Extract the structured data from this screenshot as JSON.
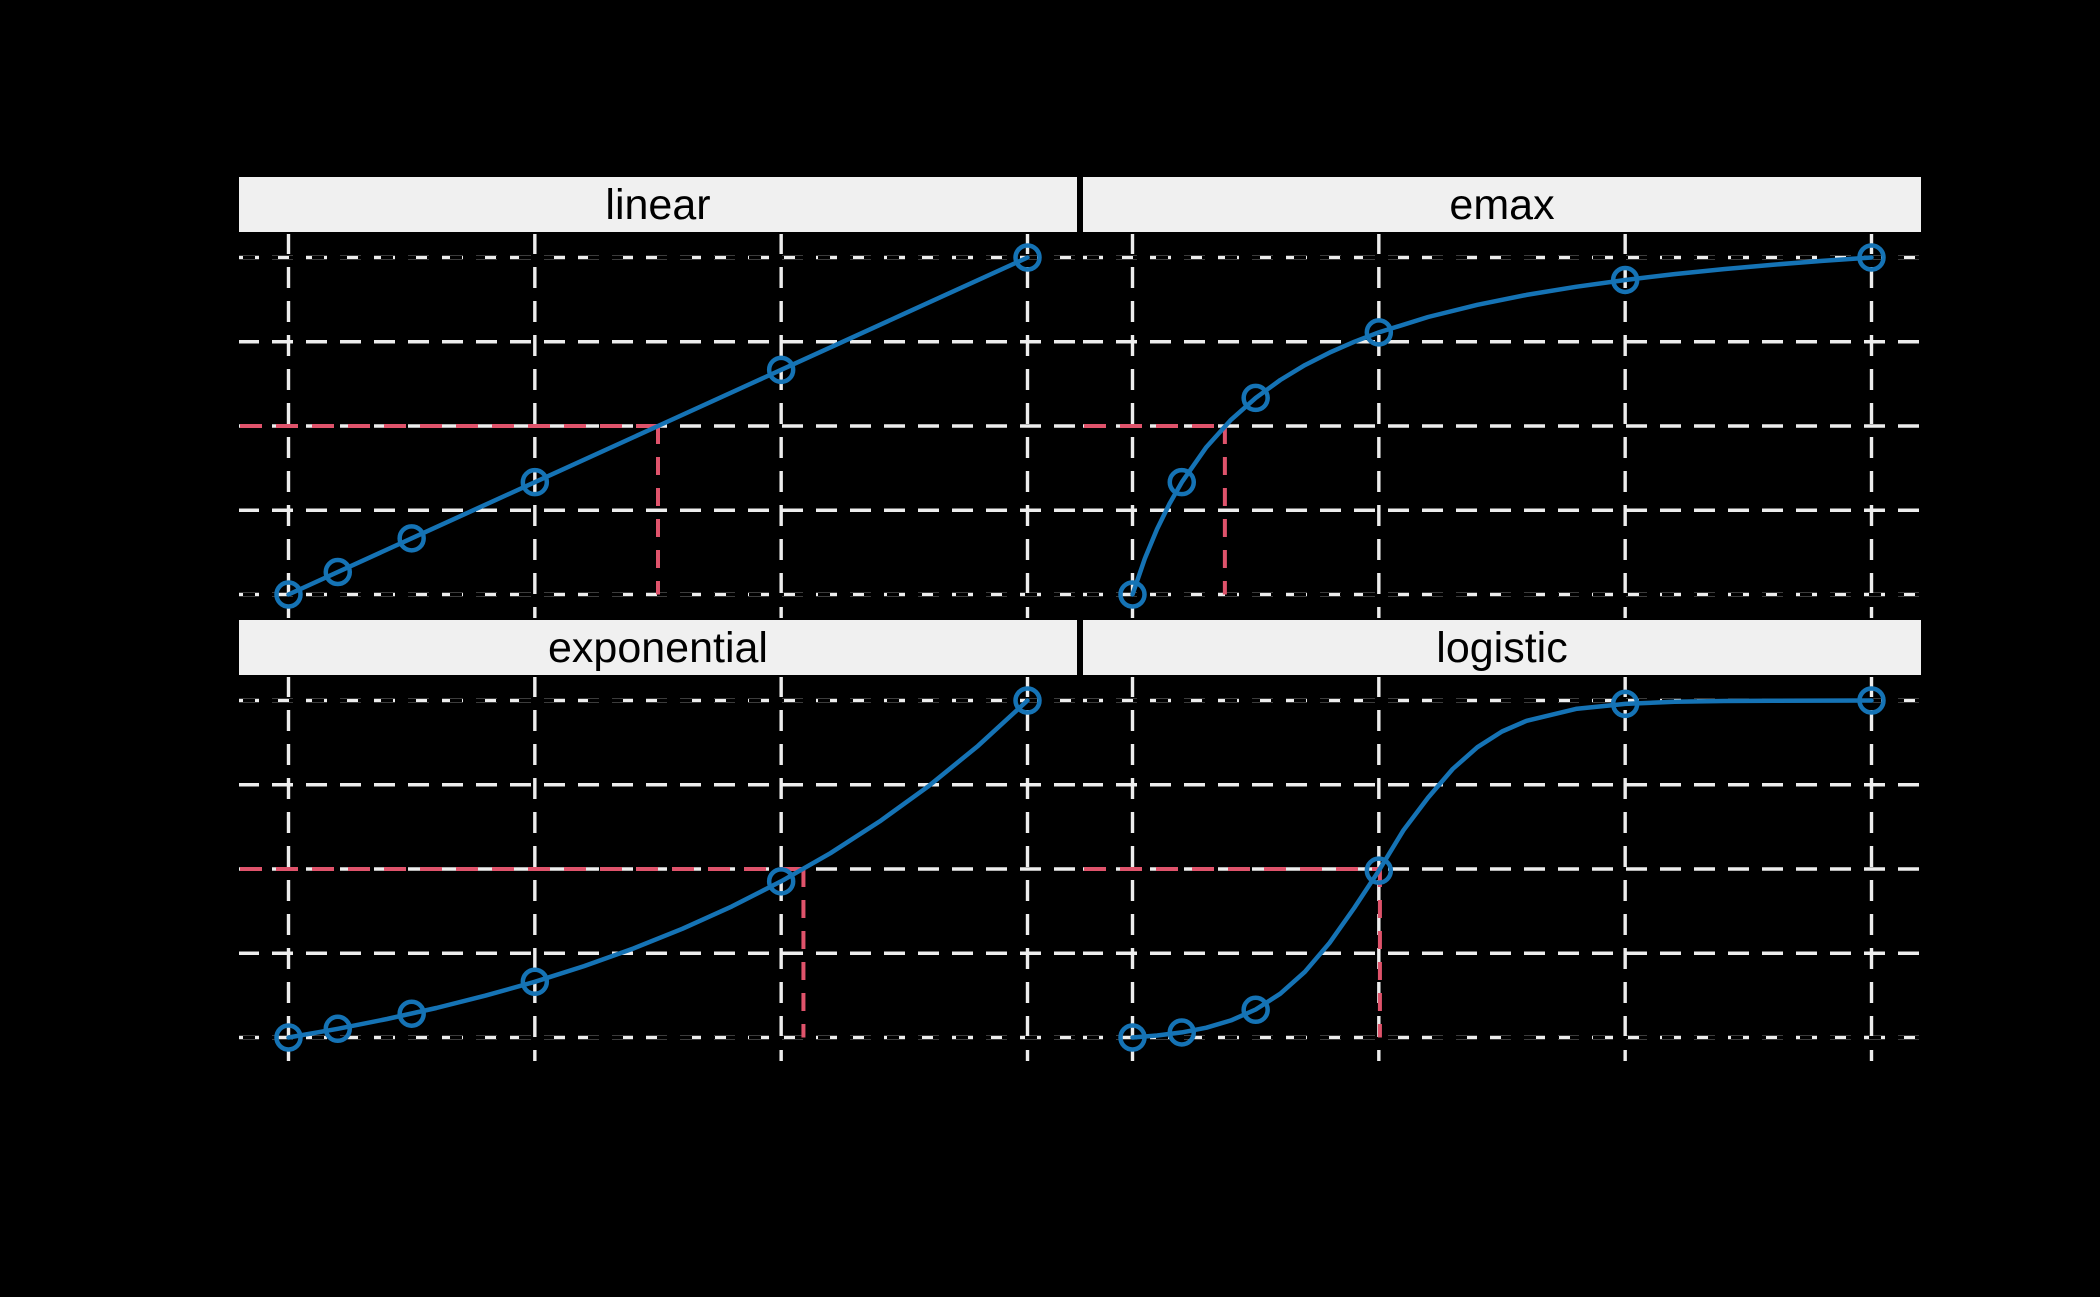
{
  "figure": {
    "background": "#000000",
    "note": "trellis dose-response model plot, 2x2 panels"
  },
  "colors": {
    "curve": "#1573B5",
    "td_line": "#DF536B",
    "gridline": "#EDEDED",
    "grid_emphasis_overlay": "#000000",
    "strip_bg": "#F0F0F0",
    "strip_border": "#000000",
    "strip_text": "#000000",
    "background": "#000000"
  },
  "chart_data": {
    "type": "line",
    "title": "",
    "x_axis": {
      "domain": [
        0,
        150
      ],
      "gridline_doses": [
        0,
        50,
        100,
        150
      ]
    },
    "y_axis": {
      "domain": [
        0,
        1
      ],
      "gridline_levels": [
        0,
        0.25,
        0.5,
        0.75,
        1
      ],
      "emphasized_levels": [
        0,
        1
      ]
    },
    "point_doses": [
      0,
      10,
      25,
      50,
      100,
      150
    ],
    "td_level": 0.5,
    "panels": [
      {
        "label": "linear",
        "points": [
          0,
          0.0667,
          0.1667,
          0.3333,
          0.6667,
          1
        ],
        "td_dose": 75,
        "curve": {
          "d": [
            0,
            25,
            50,
            75,
            100,
            125,
            150
          ],
          "v": [
            0,
            0.1667,
            0.3333,
            0.5,
            0.6667,
            0.8333,
            1
          ]
        }
      },
      {
        "label": "emax",
        "points": [
          0,
          0.3333,
          0.5833,
          0.7778,
          0.9333,
          1
        ],
        "td_dose": 18.75,
        "curve": {
          "d": [
            0,
            2.5,
            5,
            7.5,
            10,
            15,
            20,
            25,
            30,
            35,
            40,
            45,
            50,
            60,
            70,
            80,
            90,
            100,
            110,
            120,
            130,
            140,
            150
          ],
          "v": [
            0,
            0.1061,
            0.1944,
            0.2692,
            0.3333,
            0.4375,
            0.5185,
            0.5833,
            0.6364,
            0.6806,
            0.7179,
            0.75,
            0.7778,
            0.8235,
            0.8596,
            0.8889,
            0.913,
            0.9333,
            0.9506,
            0.9655,
            0.9785,
            0.9899,
            1
          ]
        }
      },
      {
        "label": "exponential",
        "points": [
          0,
          0.0258,
          0.0706,
          0.1654,
          0.4634,
          1
        ],
        "td_dose": 104.52,
        "curve": {
          "d": [
            0,
            10,
            20,
            30,
            40,
            50,
            60,
            70,
            80,
            90,
            100,
            110,
            120,
            130,
            140,
            150
          ],
          "v": [
            0,
            0.0258,
            0.0548,
            0.0874,
            0.1242,
            0.1654,
            0.2119,
            0.2641,
            0.3229,
            0.389,
            0.4634,
            0.547,
            0.6411,
            0.7469,
            0.866,
            1
          ]
        }
      },
      {
        "label": "logistic",
        "points": [
          0,
          0.0149,
          0.0822,
          0.495,
          0.99,
          1
        ],
        "td_dose": 50.22,
        "curve": {
          "d": [
            0,
            5,
            10,
            15,
            20,
            25,
            30,
            35,
            40,
            45,
            50,
            55,
            60,
            65,
            70,
            75,
            80,
            90,
            100,
            110,
            120,
            130,
            140,
            150
          ],
          "v": [
            0,
            0.0058,
            0.015,
            0.0291,
            0.0507,
            0.083,
            0.1299,
            0.1951,
            0.2811,
            0.3843,
            0.495,
            0.6152,
            0.712,
            0.7968,
            0.8614,
            0.9079,
            0.9398,
            0.9752,
            0.99,
            0.996,
            0.9985,
            0.9995,
            0.9998,
            1
          ]
        }
      }
    ]
  }
}
